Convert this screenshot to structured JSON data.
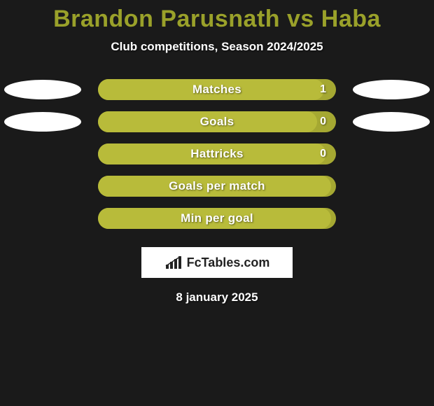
{
  "background_color": "#1a1a1a",
  "title": {
    "player1": "Brandon Parusnath",
    "vs": "vs",
    "player2": "Haba",
    "color": "#9aa12a",
    "fontsize": 34,
    "fontweight": 900
  },
  "subtitle": {
    "text": "Club competitions, Season 2024/2025",
    "color": "#ffffff",
    "fontsize": 17,
    "fontweight": 700
  },
  "chart": {
    "track_width": 340,
    "track_height": 30,
    "track_color": "#a5a832",
    "fill_color": "#b8bb3a",
    "label_color": "#ffffff",
    "label_fontsize": 17,
    "value_color": "#ffffff",
    "value_fontsize": 16,
    "border_radius": 16,
    "ellipse_color": "#ffffff",
    "ellipse_width": 110,
    "ellipse_height": 28,
    "rows": [
      {
        "label": "Matches",
        "value": "1",
        "fillPercent": 95,
        "showEllipses": true,
        "showValue": true
      },
      {
        "label": "Goals",
        "value": "0",
        "fillPercent": 92,
        "showEllipses": true,
        "showValue": true
      },
      {
        "label": "Hattricks",
        "value": "0",
        "fillPercent": 96,
        "showEllipses": false,
        "showValue": true
      },
      {
        "label": "Goals per match",
        "value": "",
        "fillPercent": 98,
        "showEllipses": false,
        "showValue": false
      },
      {
        "label": "Min per goal",
        "value": "",
        "fillPercent": 98,
        "showEllipses": false,
        "showValue": false
      }
    ]
  },
  "logo": {
    "brand": "FcTables.com",
    "box_bg": "#ffffff",
    "text_color": "#222222",
    "icon_color": "#222222"
  },
  "date": {
    "text": "8 january 2025",
    "color": "#ffffff",
    "fontsize": 17,
    "fontweight": 800
  }
}
